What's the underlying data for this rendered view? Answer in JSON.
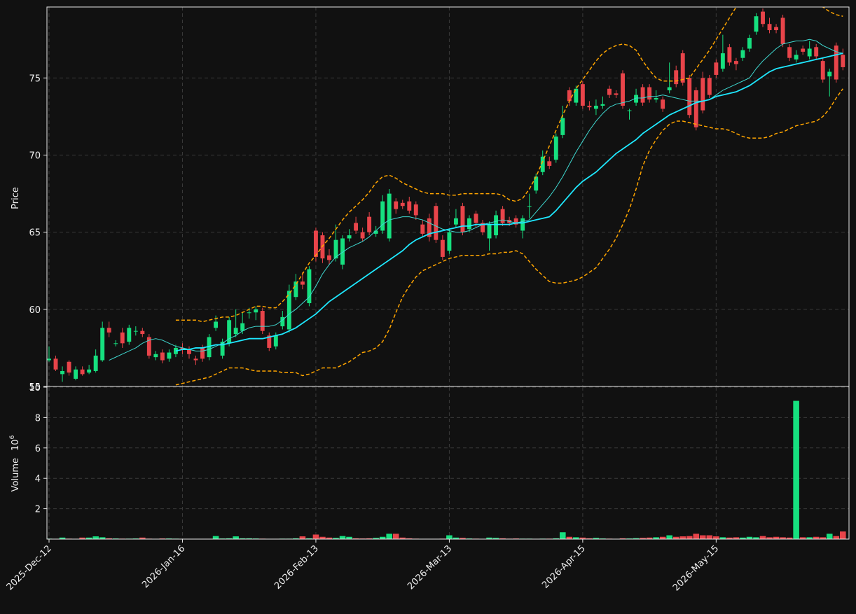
{
  "chart_data": {
    "type": "candlestick",
    "categories": [
      "2025-Dec-12",
      null,
      null,
      null,
      null,
      null,
      null,
      null,
      null,
      null,
      null,
      null,
      null,
      null,
      null,
      null,
      null,
      null,
      null,
      null,
      "2026-Jan-16",
      null,
      null,
      null,
      null,
      null,
      null,
      null,
      null,
      null,
      null,
      null,
      null,
      null,
      null,
      null,
      null,
      null,
      null,
      null,
      "2026-Feb-13",
      null,
      null,
      null,
      null,
      null,
      null,
      null,
      null,
      null,
      null,
      null,
      null,
      null,
      null,
      null,
      null,
      null,
      null,
      null,
      "2026-Mar-13",
      null,
      null,
      null,
      null,
      null,
      null,
      null,
      null,
      null,
      null,
      null,
      null,
      null,
      null,
      null,
      null,
      null,
      null,
      null,
      "2026-Apr-15",
      null,
      null,
      null,
      null,
      null,
      null,
      null,
      null,
      null,
      null,
      null,
      null,
      null,
      null,
      null,
      null,
      null,
      null,
      null,
      "2026-May-15",
      null,
      null,
      null,
      null,
      null,
      null,
      null,
      null,
      null,
      null,
      null,
      null,
      null,
      null,
      null,
      null,
      null,
      null,
      null
    ],
    "open": [
      56.7,
      56.8,
      55.8,
      56.6,
      55.5,
      56.1,
      55.9,
      56.0,
      56.7,
      58.8,
      57.8,
      58.5,
      57.9,
      58.6,
      58.6,
      58.2,
      56.9,
      57.2,
      56.8,
      57.1,
      57.5,
      57.4,
      56.8,
      57.5,
      56.9,
      58.8,
      57.0,
      57.8,
      58.4,
      58.6,
      59.8,
      59.8,
      59.9,
      58.3,
      57.6,
      58.9,
      58.7,
      60.8,
      61.8,
      60.4,
      65.1,
      64.8,
      63.5,
      63.3,
      62.9,
      64.6,
      65.6,
      65.0,
      66.0,
      64.9,
      65.1,
      64.6,
      67.0,
      66.9,
      67.0,
      66.8,
      65.5,
      65.9,
      66.7,
      64.5,
      63.8,
      65.5,
      66.7,
      65.2,
      66.2,
      65.6,
      64.6,
      64.8,
      66.5,
      65.8,
      65.9,
      65.1,
      66.7,
      67.7,
      68.9,
      69.6,
      69.7,
      71.3,
      74.2,
      73.4,
      74.6,
      73.2,
      73.0,
      73.2,
      74.3,
      74.0,
      75.3,
      72.9,
      73.4,
      74.4,
      74.4,
      73.6,
      73.6,
      74.2,
      75.5,
      76.6,
      75.0,
      74.2,
      75.0,
      75.0,
      76.0,
      75.6,
      77.0,
      76.1,
      76.3,
      76.9,
      78.0,
      79.3,
      78.5,
      78.3,
      78.9,
      77.0,
      76.2,
      76.9,
      76.4,
      77.0,
      76.1,
      75.1,
      77.1,
      76.5
    ],
    "high": [
      57.6,
      57.0,
      56.3,
      56.7,
      56.3,
      56.3,
      56.4,
      57.4,
      59.2,
      59.2,
      58.0,
      58.8,
      59.0,
      58.9,
      58.8,
      58.4,
      57.3,
      57.4,
      57.4,
      57.7,
      57.8,
      57.6,
      57.0,
      57.7,
      58.4,
      59.6,
      58.1,
      59.5,
      60.0,
      59.8,
      60.1,
      60.2,
      60.1,
      58.5,
      58.5,
      59.9,
      61.6,
      62.3,
      62.4,
      62.8,
      65.3,
      65.0,
      63.9,
      65.5,
      64.8,
      65.2,
      66.0,
      65.3,
      66.3,
      65.4,
      67.4,
      67.8,
      67.2,
      67.1,
      67.3,
      67.0,
      65.8,
      66.2,
      66.9,
      64.8,
      65.2,
      66.5,
      66.9,
      66.1,
      66.4,
      65.8,
      65.7,
      66.4,
      66.7,
      66.0,
      66.1,
      66.1,
      67.5,
      68.8,
      70.3,
      69.9,
      71.4,
      73.2,
      74.4,
      74.5,
      74.8,
      73.5,
      73.6,
      73.8,
      74.5,
      74.2,
      75.5,
      73.0,
      74.3,
      74.6,
      74.6,
      74.2,
      73.8,
      76.0,
      75.8,
      76.8,
      75.2,
      74.4,
      75.4,
      75.2,
      76.2,
      77.8,
      77.2,
      76.3,
      77.0,
      77.8,
      79.2,
      79.5,
      78.9,
      78.5,
      79.1,
      77.2,
      76.8,
      77.1,
      77.4,
      77.2,
      76.3,
      75.6,
      77.3,
      76.9
    ],
    "low": [
      56.6,
      56.0,
      55.3,
      55.7,
      55.4,
      55.7,
      55.8,
      55.9,
      56.6,
      58.2,
      57.6,
      57.5,
      57.7,
      58.3,
      58.2,
      56.8,
      56.7,
      56.5,
      56.6,
      56.9,
      57.1,
      56.8,
      56.4,
      56.6,
      56.7,
      58.6,
      56.8,
      57.6,
      58.2,
      58.4,
      59.4,
      59.3,
      58.4,
      57.3,
      57.4,
      58.7,
      58.5,
      60.6,
      61.3,
      60.2,
      63.1,
      63.0,
      62.9,
      63.1,
      62.6,
      64.4,
      64.9,
      64.4,
      64.8,
      64.7,
      64.9,
      64.4,
      66.2,
      66.5,
      66.2,
      65.8,
      64.7,
      64.4,
      64.3,
      63.2,
      63.6,
      65.3,
      64.8,
      65.0,
      65.3,
      64.8,
      63.8,
      64.6,
      65.4,
      65.4,
      65.3,
      64.6,
      65.9,
      67.5,
      68.7,
      69.1,
      69.5,
      71.1,
      73.2,
      73.2,
      73.0,
      72.9,
      72.6,
      73.0,
      73.7,
      73.7,
      73.0,
      72.3,
      73.2,
      73.2,
      73.4,
      73.4,
      72.8,
      74.0,
      74.4,
      74.5,
      72.4,
      71.6,
      72.7,
      73.7,
      75.0,
      75.4,
      75.8,
      75.5,
      76.1,
      76.7,
      77.8,
      78.3,
      77.9,
      77.9,
      77.0,
      76.1,
      76.0,
      76.5,
      76.2,
      76.2,
      74.7,
      73.8,
      74.7,
      75.5
    ],
    "close": [
      56.8,
      56.1,
      56.0,
      55.9,
      56.1,
      55.8,
      56.1,
      57.0,
      58.8,
      58.5,
      57.8,
      57.8,
      58.8,
      58.6,
      58.4,
      57.0,
      57.1,
      56.7,
      57.2,
      57.5,
      57.4,
      57.1,
      56.7,
      56.8,
      58.2,
      59.2,
      57.9,
      59.3,
      58.8,
      59.1,
      59.8,
      60.0,
      58.6,
      57.5,
      58.3,
      59.5,
      61.2,
      61.8,
      61.6,
      62.6,
      63.4,
      63.3,
      63.2,
      64.5,
      64.6,
      64.8,
      65.1,
      64.6,
      65.0,
      65.1,
      67.0,
      67.5,
      66.5,
      66.7,
      66.4,
      66.1,
      64.9,
      64.7,
      64.5,
      63.4,
      65.0,
      65.9,
      65.0,
      65.9,
      65.6,
      65.0,
      65.5,
      66.1,
      65.6,
      65.6,
      65.5,
      65.9,
      66.7,
      68.6,
      69.9,
      69.3,
      71.2,
      72.4,
      73.5,
      74.3,
      73.2,
      73.1,
      73.2,
      73.3,
      73.9,
      73.9,
      73.2,
      72.9,
      73.9,
      73.4,
      73.6,
      73.7,
      73.0,
      74.4,
      74.6,
      74.7,
      72.6,
      71.8,
      72.9,
      73.9,
      75.2,
      76.6,
      76.0,
      75.9,
      76.8,
      77.6,
      79.0,
      78.5,
      78.1,
      78.1,
      77.2,
      76.3,
      76.5,
      76.7,
      76.9,
      76.4,
      74.9,
      75.4,
      74.9,
      75.7
    ],
    "up_color": "#16e07f",
    "down_color": "#e8444a",
    "ylabel": "Price",
    "ylim": [
      55,
      79.6
    ],
    "yticks": [
      55,
      60,
      65,
      70,
      75
    ],
    "grid": true,
    "lines": [
      {
        "color": "#3fd8d0",
        "width": 1,
        "dashed": false,
        "values": [
          null,
          null,
          null,
          null,
          null,
          null,
          null,
          null,
          null,
          56.7,
          56.9,
          57.1,
          57.3,
          57.5,
          57.8,
          58.0,
          58.1,
          58.0,
          57.8,
          57.6,
          57.5,
          57.4,
          57.3,
          57.3,
          57.4,
          57.6,
          57.8,
          58.1,
          58.3,
          58.6,
          58.8,
          58.9,
          58.9,
          58.9,
          59.0,
          59.3,
          59.7,
          60.0,
          60.4,
          60.8,
          61.5,
          62.3,
          62.9,
          63.4,
          63.7,
          64.0,
          64.2,
          64.4,
          64.7,
          65.1,
          65.5,
          65.8,
          65.9,
          66.0,
          66.0,
          65.9,
          65.8,
          65.6,
          65.4,
          65.2,
          65.1,
          65.0,
          65.0,
          65.1,
          65.3,
          65.5,
          65.6,
          65.7,
          65.8,
          65.7,
          65.6,
          65.7,
          65.8,
          66.3,
          66.8,
          67.3,
          67.9,
          68.6,
          69.4,
          70.2,
          70.9,
          71.6,
          72.2,
          72.7,
          73.1,
          73.3,
          73.4,
          73.5,
          73.7,
          73.7,
          73.8,
          73.8,
          73.9,
          73.8,
          73.7,
          73.6,
          73.5,
          73.5,
          73.5,
          73.6,
          73.9,
          74.2,
          74.4,
          74.6,
          74.8,
          75.0,
          75.6,
          76.1,
          76.5,
          76.9,
          77.2,
          77.3,
          77.4,
          77.4,
          77.5,
          77.4,
          77.1,
          76.9,
          76.7,
          76.6
        ]
      },
      {
        "color": "#1ee8ff",
        "width": 1.8,
        "dashed": false,
        "values": [
          null,
          null,
          null,
          null,
          null,
          null,
          null,
          null,
          null,
          null,
          null,
          null,
          null,
          null,
          null,
          null,
          null,
          null,
          null,
          57.3,
          57.4,
          57.4,
          57.5,
          57.5,
          57.6,
          57.7,
          57.7,
          57.8,
          57.9,
          58.0,
          58.1,
          58.1,
          58.1,
          58.2,
          58.3,
          58.4,
          58.6,
          58.8,
          59.1,
          59.4,
          59.7,
          60.1,
          60.5,
          60.8,
          61.1,
          61.4,
          61.7,
          62.0,
          62.3,
          62.6,
          62.9,
          63.2,
          63.5,
          63.8,
          64.2,
          64.5,
          64.7,
          64.9,
          65.0,
          65.1,
          65.2,
          65.3,
          65.4,
          65.4,
          65.5,
          65.5,
          65.5,
          65.5,
          65.5,
          65.5,
          65.6,
          65.6,
          65.7,
          65.8,
          65.9,
          66.0,
          66.4,
          66.9,
          67.4,
          67.9,
          68.3,
          68.6,
          68.9,
          69.3,
          69.7,
          70.1,
          70.4,
          70.7,
          71.0,
          71.4,
          71.7,
          72.0,
          72.3,
          72.6,
          72.8,
          73.0,
          73.2,
          73.4,
          73.5,
          73.6,
          73.8,
          73.9,
          74.0,
          74.1,
          74.3,
          74.5,
          74.8,
          75.1,
          75.4,
          75.6,
          75.7,
          75.8,
          75.9,
          76.0,
          76.1,
          76.2,
          76.3,
          76.4,
          76.5,
          76.6
        ]
      },
      {
        "color": "#ffa500",
        "width": 1.5,
        "dashed": true,
        "values": [
          null,
          null,
          null,
          null,
          null,
          null,
          null,
          null,
          null,
          null,
          null,
          null,
          null,
          null,
          null,
          null,
          null,
          null,
          null,
          59.3,
          59.3,
          59.3,
          59.3,
          59.2,
          59.3,
          59.4,
          59.5,
          59.5,
          59.6,
          59.8,
          60.0,
          60.2,
          60.2,
          60.1,
          60.1,
          60.5,
          61.0,
          61.6,
          62.3,
          63.0,
          63.5,
          64.1,
          64.6,
          65.2,
          65.8,
          66.3,
          66.7,
          67.1,
          67.6,
          68.2,
          68.6,
          68.7,
          68.5,
          68.2,
          68.0,
          67.8,
          67.6,
          67.5,
          67.5,
          67.5,
          67.4,
          67.4,
          67.5,
          67.5,
          67.5,
          67.5,
          67.5,
          67.5,
          67.4,
          67.1,
          67.0,
          67.2,
          67.8,
          68.6,
          69.6,
          70.6,
          71.6,
          72.6,
          73.5,
          74.3,
          74.9,
          75.5,
          76.1,
          76.6,
          76.9,
          77.1,
          77.2,
          77.1,
          76.8,
          76.1,
          75.5,
          75.0,
          74.8,
          74.8,
          74.8,
          74.9,
          75.0,
          75.6,
          76.2,
          76.8,
          77.5,
          78.2,
          78.9,
          79.6,
          80.2,
          80.6,
          80.8,
          80.8,
          80.7,
          80.6,
          80.5,
          80.4,
          80.2,
          80.0,
          79.8,
          79.7,
          79.6,
          79.3,
          79.1,
          79.0
        ]
      },
      {
        "color": "#ffa500",
        "width": 1.5,
        "dashed": true,
        "values": [
          null,
          null,
          null,
          null,
          null,
          null,
          null,
          null,
          null,
          null,
          null,
          null,
          null,
          null,
          null,
          null,
          null,
          null,
          null,
          55.1,
          55.2,
          55.3,
          55.4,
          55.5,
          55.6,
          55.8,
          56.0,
          56.2,
          56.2,
          56.2,
          56.1,
          56.0,
          56.0,
          56.0,
          56.0,
          55.9,
          55.9,
          55.9,
          55.7,
          55.8,
          56.0,
          56.2,
          56.2,
          56.2,
          56.4,
          56.6,
          56.9,
          57.2,
          57.3,
          57.5,
          57.9,
          58.7,
          59.8,
          60.8,
          61.5,
          62.1,
          62.5,
          62.7,
          62.9,
          63.1,
          63.3,
          63.4,
          63.5,
          63.5,
          63.5,
          63.5,
          63.6,
          63.6,
          63.7,
          63.7,
          63.8,
          63.6,
          63.1,
          62.6,
          62.2,
          61.8,
          61.7,
          61.7,
          61.8,
          61.9,
          62.1,
          62.4,
          62.7,
          63.3,
          63.9,
          64.6,
          65.5,
          66.5,
          67.8,
          69.3,
          70.3,
          71.0,
          71.6,
          72.0,
          72.2,
          72.2,
          72.1,
          72.0,
          71.9,
          71.8,
          71.7,
          71.7,
          71.6,
          71.4,
          71.2,
          71.1,
          71.1,
          71.1,
          71.2,
          71.4,
          71.5,
          71.7,
          71.9,
          72.0,
          72.1,
          72.2,
          72.5,
          73.0,
          73.7,
          74.3
        ]
      }
    ],
    "volume": {
      "ylabel": "Volume",
      "multiplier_base": 10,
      "multiplier_exponent": 6,
      "ylim": [
        0,
        10
      ],
      "yticks": [
        2,
        4,
        6,
        8,
        10
      ],
      "values": [
        0.03,
        0.02,
        0.1,
        0.03,
        0.02,
        0.1,
        0.1,
        0.18,
        0.12,
        0.05,
        0.04,
        0.03,
        0.03,
        0.04,
        0.1,
        0.03,
        0.02,
        0.04,
        0.04,
        0.03,
        0.02,
        0.02,
        0.02,
        0.02,
        0.02,
        0.2,
        0.04,
        0.05,
        0.18,
        0.05,
        0.05,
        0.04,
        0.03,
        0.02,
        0.02,
        0.03,
        0.03,
        0.05,
        0.18,
        0.05,
        0.3,
        0.15,
        0.1,
        0.08,
        0.2,
        0.15,
        0.05,
        0.04,
        0.05,
        0.08,
        0.15,
        0.35,
        0.35,
        0.1,
        0.05,
        0.03,
        0.02,
        0.02,
        0.02,
        0.03,
        0.25,
        0.1,
        0.08,
        0.04,
        0.03,
        0.02,
        0.1,
        0.08,
        0.05,
        0.03,
        0.04,
        0.03,
        0.03,
        0.02,
        0.03,
        0.03,
        0.05,
        0.45,
        0.15,
        0.12,
        0.1,
        0.05,
        0.08,
        0.04,
        0.03,
        0.02,
        0.05,
        0.04,
        0.06,
        0.08,
        0.1,
        0.12,
        0.15,
        0.25,
        0.15,
        0.18,
        0.2,
        0.35,
        0.25,
        0.25,
        0.18,
        0.12,
        0.1,
        0.12,
        0.1,
        0.15,
        0.12,
        0.2,
        0.12,
        0.15,
        0.12,
        0.1,
        9.1,
        0.12,
        0.12,
        0.15,
        0.12,
        0.35,
        0.2,
        0.5
      ]
    }
  }
}
